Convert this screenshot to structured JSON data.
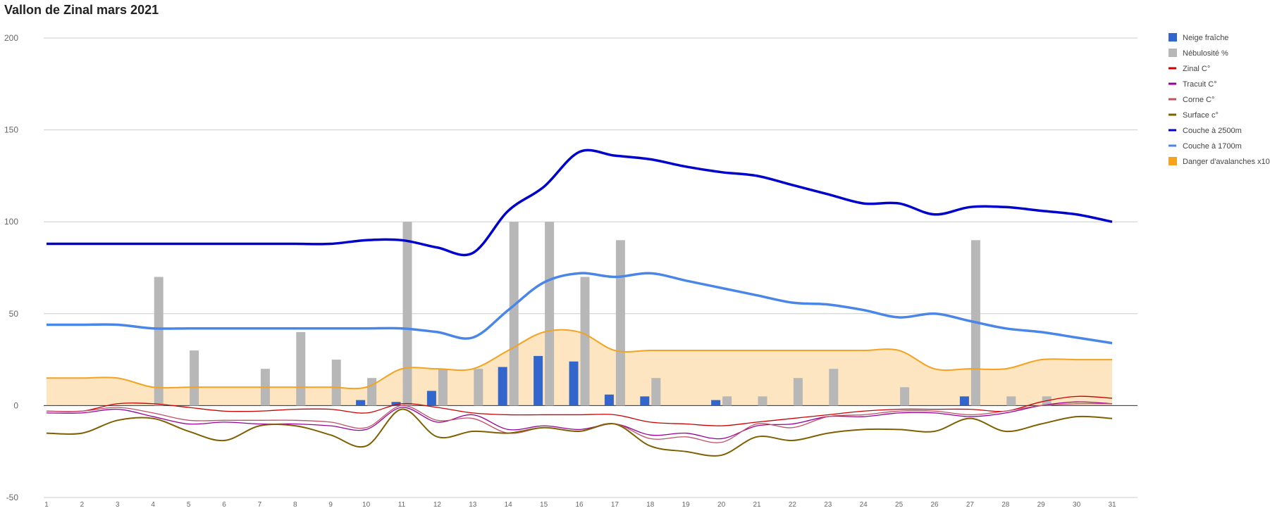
{
  "title": "Vallon de Zinal mars 2021",
  "chart_data": {
    "type": "bar",
    "title": "Vallon de Zinal mars 2021",
    "categories": [
      "1",
      "2",
      "3",
      "4",
      "5",
      "6",
      "7",
      "8",
      "9",
      "10",
      "11",
      "12",
      "13",
      "14",
      "15",
      "16",
      "17",
      "18",
      "19",
      "20",
      "21",
      "22",
      "23",
      "24",
      "25",
      "26",
      "27",
      "28",
      "29",
      "30",
      "31"
    ],
    "ylim": [
      -50,
      200
    ],
    "yticks": [
      -50,
      0,
      50,
      100,
      150,
      200
    ],
    "grid": true,
    "legend_position": "right",
    "series": [
      {
        "name": "Neige fraîche",
        "type": "bar",
        "color": "#3366cc",
        "values": [
          0,
          0,
          0,
          0,
          0,
          0,
          0,
          0,
          0,
          3,
          2,
          8,
          0,
          21,
          27,
          24,
          6,
          5,
          0,
          3,
          0,
          0,
          0,
          0,
          0,
          0,
          5,
          0,
          0,
          0,
          0
        ]
      },
      {
        "name": "Nébulosité %",
        "type": "bar",
        "color": "#b7b7b7",
        "values": [
          0,
          0,
          0,
          70,
          30,
          0,
          20,
          40,
          25,
          15,
          100,
          20,
          20,
          100,
          100,
          70,
          90,
          15,
          0,
          5,
          5,
          15,
          20,
          0,
          10,
          0,
          90,
          5,
          5,
          0,
          0
        ]
      },
      {
        "name": "Zinal C°",
        "type": "line",
        "color": "#cc0000",
        "width": 1.3,
        "values": [
          -3,
          -3,
          1,
          1,
          -1,
          -3,
          -3,
          -2,
          -2,
          -4,
          1,
          -1,
          -4,
          -5,
          -5,
          -5,
          -5,
          -9,
          -10,
          -11,
          -9,
          -7,
          -5,
          -3,
          -2,
          -2,
          -2,
          -3,
          2,
          5,
          4
        ]
      },
      {
        "name": "Tracuit C°",
        "type": "line",
        "color": "#990099",
        "width": 1.3,
        "values": [
          -4,
          -4,
          -2,
          -6,
          -10,
          -9,
          -10,
          -10,
          -11,
          -13,
          -1,
          -9,
          -5,
          -13,
          -11,
          -13,
          -10,
          -16,
          -15,
          -18,
          -11,
          -10,
          -6,
          -6,
          -4,
          -4,
          -6,
          -4,
          0,
          2,
          1
        ]
      },
      {
        "name": "Corne C°",
        "type": "line",
        "color": "#c05068",
        "width": 1.3,
        "values": [
          -3,
          -3,
          -1,
          -4,
          -8,
          -8,
          -8,
          -8,
          -9,
          -12,
          0,
          -8,
          -7,
          -15,
          -12,
          -14,
          -10,
          -18,
          -17,
          -20,
          -10,
          -12,
          -6,
          -5,
          -3,
          -3,
          -5,
          -3,
          0,
          1,
          1
        ]
      },
      {
        "name": "Surface c°",
        "type": "line",
        "color": "#7f6000",
        "width": 2,
        "values": [
          -15,
          -15,
          -8,
          -7,
          -14,
          -19,
          -11,
          -11,
          -16,
          -22,
          -2,
          -17,
          -14,
          -15,
          -12,
          -14,
          -10,
          -22,
          -25,
          -27,
          -17,
          -19,
          -15,
          -13,
          -13,
          -14,
          -7,
          -14,
          -10,
          -6,
          -7
        ]
      },
      {
        "name": "Couche à 2500m",
        "type": "line",
        "color": "#0000cc",
        "width": 3.5,
        "values": [
          88,
          88,
          88,
          88,
          88,
          88,
          88,
          88,
          88,
          90,
          90,
          86,
          83,
          106,
          119,
          138,
          136,
          134,
          130,
          127,
          125,
          120,
          115,
          110,
          110,
          104,
          108,
          108,
          106,
          104,
          100
        ]
      },
      {
        "name": "Couche à 1700m",
        "type": "line",
        "color": "#4a86e8",
        "width": 3.5,
        "values": [
          44,
          44,
          44,
          42,
          42,
          42,
          42,
          42,
          42,
          42,
          42,
          40,
          37,
          52,
          67,
          72,
          70,
          72,
          68,
          64,
          60,
          56,
          55,
          52,
          48,
          50,
          46,
          42,
          40,
          37,
          34
        ]
      },
      {
        "name": "Danger d'avalanches x10",
        "type": "area",
        "color": "#f4a21f",
        "fill": "#fce5c0",
        "values": [
          15,
          15,
          15,
          10,
          10,
          10,
          10,
          10,
          10,
          10,
          20,
          20,
          20,
          30,
          40,
          40,
          30,
          30,
          30,
          30,
          30,
          30,
          30,
          30,
          30,
          20,
          20,
          20,
          25,
          25,
          25
        ]
      }
    ]
  }
}
